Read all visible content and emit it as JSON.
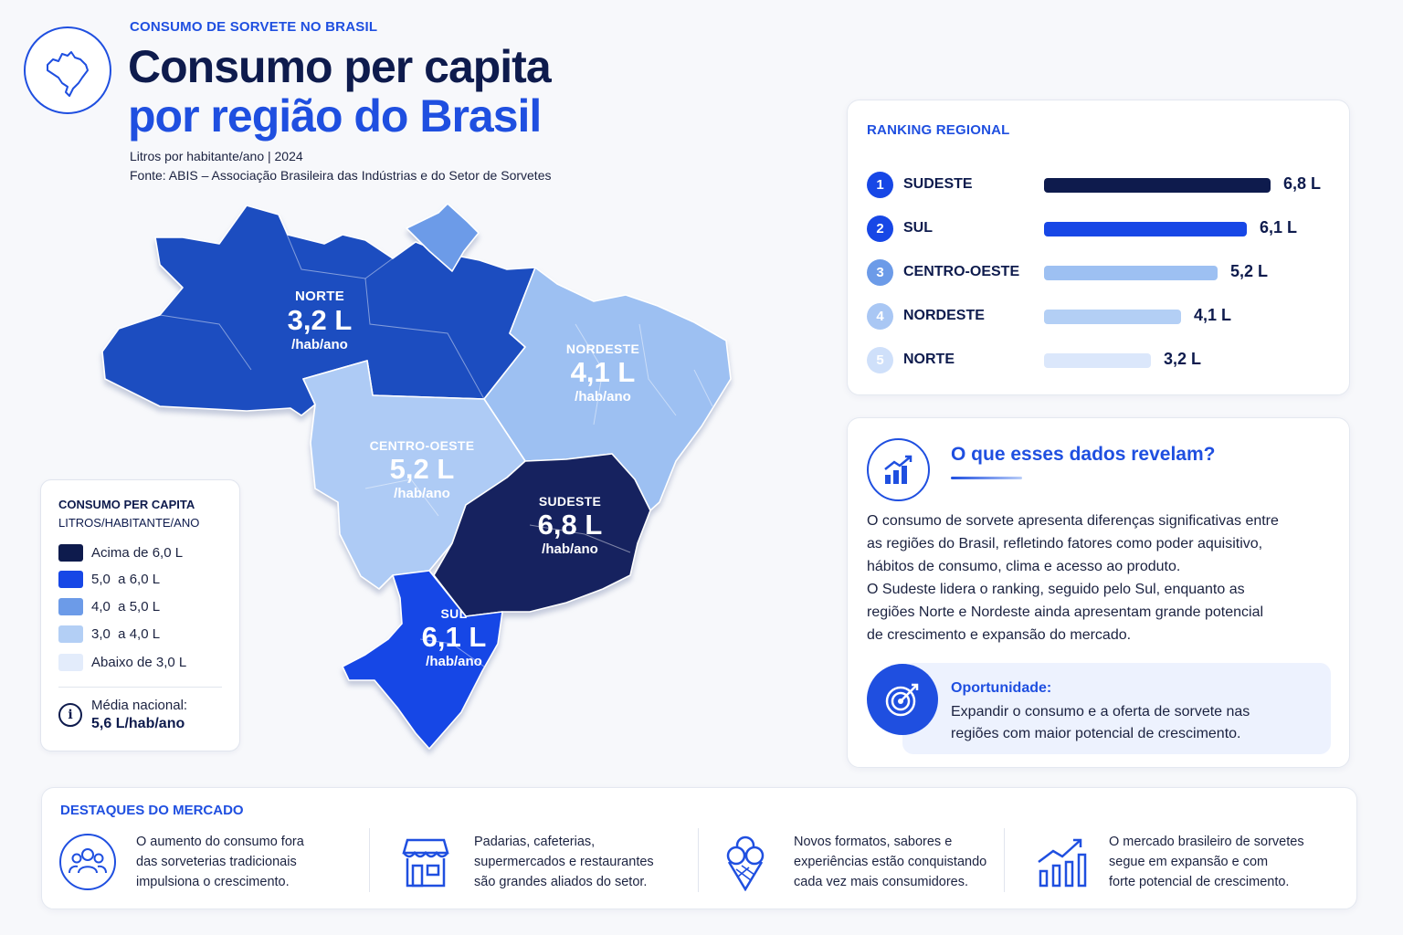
{
  "header": {
    "kicker": "CONSUMO DE SORVETE NO BRASIL",
    "title_line1": "Consumo per capita",
    "title_line2": "por região do Brasil",
    "subtitle": "Litros por habitante/ano | 2024",
    "source": "Fonte: ABIS – Associação Brasileira das Indústrias e do Setor de Sorvetes",
    "logo_icon": "brazil-map-icon"
  },
  "map": {
    "regions": [
      {
        "id": "norte",
        "name": "NORTE",
        "value": "3,2 L",
        "unit": "/hab/ano",
        "color": "#1f4ec0"
      },
      {
        "id": "nordeste",
        "name": "NORDESTE",
        "value": "4,1 L",
        "unit": "/hab/ano",
        "color": "#9dc0f2"
      },
      {
        "id": "centro-oeste",
        "name": "CENTRO-OESTE",
        "value": "5,2 L",
        "unit": "/hab/ano",
        "color": "#aecbf5"
      },
      {
        "id": "sudeste",
        "name": "SUDESTE",
        "value": "6,8 L",
        "unit": "/hab/ano",
        "color": "#12235f"
      },
      {
        "id": "sul",
        "name": "SUL",
        "value": "6,1 L",
        "unit": "/hab/ano",
        "color": "#1747e6"
      }
    ],
    "amapa_color": "#6c9be8"
  },
  "legend": {
    "title": "CONSUMO PER CAPITA",
    "subtitle": "LITROS/HABITANTE/ANO",
    "items": [
      {
        "label": "Acima de 6,0 L",
        "color": "#0e1b4d"
      },
      {
        "label": "5,0  a 6,0 L",
        "color": "#1747e6"
      },
      {
        "label": "4,0  a 5,0 L",
        "color": "#6c9be8"
      },
      {
        "label": "3,0  a 4,0 L",
        "color": "#b3cff5"
      },
      {
        "label": "Abaixo de 3,0 L",
        "color": "#e3ecfb"
      }
    ],
    "avg_label": "Média nacional:",
    "avg_value": "5,6 L/hab/ano",
    "info_icon": "info-icon"
  },
  "ranking": {
    "title": "RANKING REGIONAL",
    "max": 6.8,
    "items": [
      {
        "rank": "1",
        "name": "SUDESTE",
        "value": 6.8,
        "label": "6,8 L",
        "color": "#0e1b4d",
        "badge": "#1747e6"
      },
      {
        "rank": "2",
        "name": "SUL",
        "value": 6.1,
        "label": "6,1 L",
        "color": "#1747e6",
        "badge": "#1747e6"
      },
      {
        "rank": "3",
        "name": "CENTRO-OESTE",
        "value": 5.2,
        "label": "5,2 L",
        "color": "#9dc0f2",
        "badge": "#6c9be8"
      },
      {
        "rank": "4",
        "name": "NORDESTE",
        "value": 4.1,
        "label": "4,1 L",
        "color": "#b3cff5",
        "badge": "#a9c7f4"
      },
      {
        "rank": "5",
        "name": "NORTE",
        "value": 3.2,
        "label": "3,2 L",
        "color": "#dbe7fb",
        "badge": "#cfe0fa"
      }
    ]
  },
  "insight": {
    "title": "O que esses dados revelam?",
    "text_lines": [
      "O consumo de sorvete apresenta diferenças significativas entre",
      "as regiões do Brasil, refletindo fatores como poder aquisitivo,",
      "hábitos de consumo, clima e acesso ao produto.",
      "O Sudeste lidera o ranking, seguido pelo Sul, enquanto as",
      "regiões Norte e Nordeste ainda apresentam grande potencial",
      "de crescimento e expansão do mercado."
    ],
    "opportunity_title": "Oportunidade:",
    "opportunity_lines": [
      "Expandir o consumo e a oferta de sorvete nas",
      "regiões com maior potencial de crescimento."
    ],
    "chart_icon": "bar-chart-growth-icon",
    "target_icon": "target-icon"
  },
  "highlights": {
    "title": "DESTAQUES DO MERCADO",
    "items": [
      {
        "icon": "people-icon",
        "lines": [
          "O aumento do consumo fora",
          "das sorveterias tradicionais",
          "impulsiona o crescimento."
        ]
      },
      {
        "icon": "store-icon",
        "lines": [
          "Padarias, cafeterias,",
          "supermercados e restaurantes",
          "são grandes aliados do setor."
        ]
      },
      {
        "icon": "ice-cream-icon",
        "lines": [
          "Novos formatos, sabores e",
          "experiências estão conquistando",
          "cada vez mais consumidores."
        ]
      },
      {
        "icon": "growth-chart-icon",
        "lines": [
          "O mercado brasileiro de sorvetes",
          "segue em expansão e com",
          "forte potencial de crescimento."
        ]
      }
    ]
  }
}
